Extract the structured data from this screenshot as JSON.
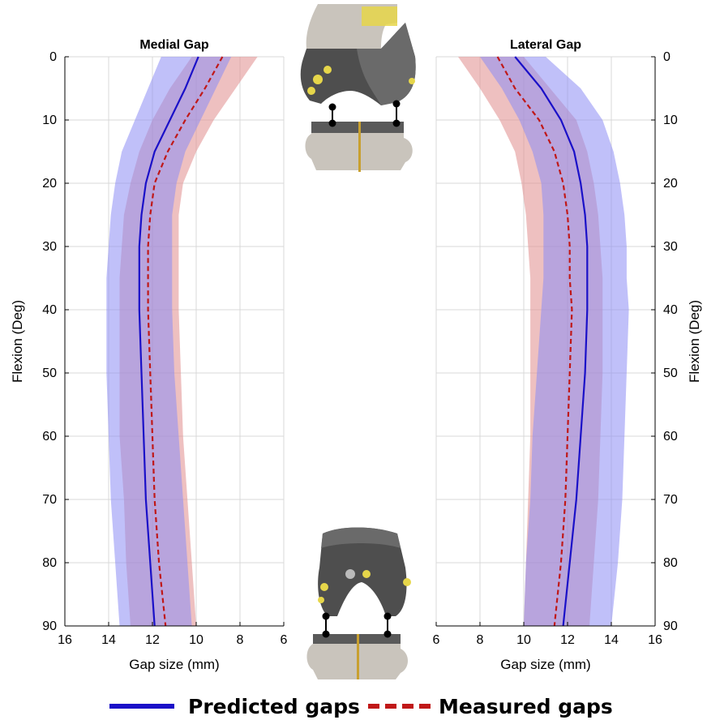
{
  "colors": {
    "predicted": "#1a10c8",
    "predicted_band": "#8c8cf4",
    "measured": "#c01818",
    "measured_band": "#e08c8c",
    "grid": "#d9d9d9",
    "implant_metal": "#5a5a5a",
    "bone": "#c9c4bc",
    "cartilage_marker": "#e6d64a"
  },
  "legend": {
    "predicted_label": "Predicted gaps",
    "measured_label": "Measured gaps"
  },
  "icons": {
    "top_implant": "knee-implant-extension-icon",
    "bottom_implant": "knee-implant-flexion-icon"
  },
  "chart_data": [
    {
      "type": "line",
      "title": "Medial Gap",
      "xlabel": "Gap size (mm)",
      "ylabel": "Flexion (Deg)",
      "xlim": [
        16,
        6
      ],
      "ylim": [
        90,
        0
      ],
      "xticks": [
        16,
        14,
        12,
        10,
        8,
        6
      ],
      "yticks": [
        0,
        10,
        20,
        30,
        40,
        50,
        60,
        70,
        80,
        90
      ],
      "grid": true,
      "y": [
        0,
        5,
        10,
        15,
        20,
        25,
        30,
        35,
        40,
        50,
        60,
        70,
        80,
        90
      ],
      "series": [
        {
          "name": "Predicted gaps",
          "style": "solid",
          "values": [
            9.9,
            10.5,
            11.2,
            11.9,
            12.3,
            12.5,
            12.6,
            12.6,
            12.6,
            12.5,
            12.4,
            12.3,
            12.1,
            11.9
          ],
          "band_low": [
            8.4,
            9.1,
            9.8,
            10.5,
            10.9,
            11.1,
            11.1,
            11.1,
            11.1,
            11.0,
            10.8,
            10.6,
            10.4,
            10.2
          ],
          "band_high": [
            11.6,
            12.2,
            12.8,
            13.4,
            13.7,
            13.9,
            14.0,
            14.1,
            14.1,
            14.1,
            14.0,
            13.9,
            13.7,
            13.5
          ]
        },
        {
          "name": "Measured gaps",
          "style": "dashed",
          "values": [
            8.8,
            9.6,
            10.5,
            11.3,
            11.9,
            12.1,
            12.2,
            12.2,
            12.2,
            12.1,
            12.0,
            11.9,
            11.7,
            11.4
          ],
          "band_low": [
            7.2,
            8.2,
            9.2,
            10.0,
            10.6,
            10.8,
            10.8,
            10.8,
            10.8,
            10.7,
            10.6,
            10.4,
            10.2,
            10.0
          ],
          "band_high": [
            10.2,
            11.2,
            12.0,
            12.6,
            13.0,
            13.3,
            13.4,
            13.5,
            13.5,
            13.5,
            13.5,
            13.3,
            13.2,
            13.0
          ]
        }
      ]
    },
    {
      "type": "line",
      "title": "Lateral Gap",
      "xlabel": "Gap size (mm)",
      "ylabel": "Flexion (Deg)",
      "xlim": [
        6,
        16
      ],
      "ylim": [
        90,
        0
      ],
      "xticks": [
        6,
        8,
        10,
        12,
        14,
        16
      ],
      "yticks": [
        0,
        10,
        20,
        30,
        40,
        50,
        60,
        70,
        80,
        90
      ],
      "grid": true,
      "y": [
        0,
        5,
        10,
        15,
        20,
        25,
        30,
        35,
        40,
        50,
        60,
        70,
        80,
        90
      ],
      "series": [
        {
          "name": "Predicted gaps",
          "style": "solid",
          "values": [
            9.6,
            10.8,
            11.7,
            12.3,
            12.6,
            12.8,
            12.9,
            12.9,
            12.9,
            12.8,
            12.6,
            12.4,
            12.1,
            11.8
          ],
          "band_low": [
            8.0,
            9.0,
            9.8,
            10.4,
            10.8,
            10.9,
            10.9,
            10.9,
            10.8,
            10.6,
            10.4,
            10.3,
            10.1,
            10.0
          ],
          "band_high": [
            11.0,
            12.6,
            13.6,
            14.1,
            14.4,
            14.6,
            14.7,
            14.7,
            14.8,
            14.7,
            14.6,
            14.5,
            14.3,
            14.0
          ]
        },
        {
          "name": "Measured gaps",
          "style": "dashed",
          "values": [
            8.8,
            9.6,
            10.7,
            11.4,
            11.8,
            12.0,
            12.1,
            12.1,
            12.2,
            12.1,
            12.0,
            11.9,
            11.7,
            11.4
          ],
          "band_low": [
            7.0,
            8.0,
            8.9,
            9.6,
            9.9,
            10.1,
            10.2,
            10.3,
            10.3,
            10.3,
            10.3,
            10.2,
            10.1,
            10.0
          ],
          "band_high": [
            10.0,
            11.2,
            12.4,
            12.9,
            13.2,
            13.4,
            13.5,
            13.6,
            13.6,
            13.6,
            13.5,
            13.4,
            13.2,
            13.0
          ]
        }
      ]
    }
  ]
}
